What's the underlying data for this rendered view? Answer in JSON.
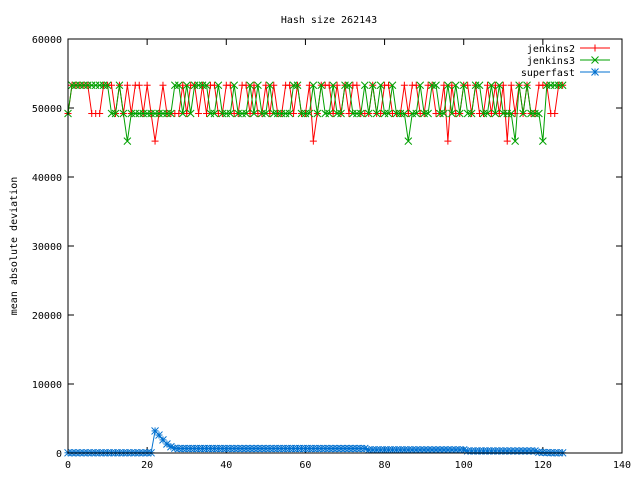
{
  "chart_data": {
    "type": "line",
    "title": "Hash size 262143",
    "xlabel": "",
    "ylabel": "mean absolute deviation",
    "xlim": [
      0,
      140
    ],
    "ylim": [
      0,
      60000
    ],
    "x_ticks": [
      "0",
      "20",
      "40",
      "60",
      "80",
      "100",
      "120",
      "140"
    ],
    "y_ticks": [
      "0",
      "10000",
      "20000",
      "30000",
      "40000",
      "50000",
      "60000"
    ],
    "grid": false,
    "legend_position": "top-right",
    "series": [
      {
        "name": "jenkins2",
        "color": "#ff0000",
        "marker": "plus",
        "x": [
          0,
          1,
          2,
          3,
          4,
          5,
          6,
          7,
          8,
          9,
          10,
          11,
          12,
          13,
          14,
          15,
          16,
          17,
          18,
          19,
          20,
          21,
          22,
          23,
          24,
          25,
          26,
          27,
          28,
          29,
          30,
          31,
          32,
          33,
          34,
          35,
          36,
          37,
          38,
          39,
          40,
          41,
          42,
          43,
          44,
          45,
          46,
          47,
          48,
          49,
          50,
          51,
          52,
          53,
          54,
          55,
          56,
          57,
          58,
          59,
          60,
          61,
          62,
          63,
          64,
          65,
          66,
          67,
          68,
          69,
          70,
          71,
          72,
          73,
          74,
          75,
          76,
          77,
          78,
          79,
          80,
          81,
          82,
          83,
          84,
          85,
          86,
          87,
          88,
          89,
          90,
          91,
          92,
          93,
          94,
          95,
          96,
          97,
          98,
          99,
          100,
          101,
          102,
          103,
          104,
          105,
          106,
          107,
          108,
          109,
          110,
          111,
          112,
          113,
          114,
          115,
          116,
          117,
          118,
          119,
          120,
          121,
          122,
          123,
          124,
          125
        ],
        "values": [
          49200,
          53300,
          53300,
          53300,
          53300,
          53300,
          49200,
          49200,
          49200,
          53300,
          53300,
          53300,
          49200,
          53300,
          49200,
          53300,
          49200,
          53300,
          53300,
          49200,
          53300,
          49200,
          45200,
          49200,
          53300,
          49200,
          49200,
          49200,
          49200,
          53300,
          49200,
          53300,
          53300,
          49200,
          53300,
          49200,
          53300,
          53300,
          49200,
          49200,
          53300,
          53300,
          49200,
          49200,
          53300,
          53300,
          49200,
          53300,
          49200,
          49200,
          53300,
          49200,
          53300,
          49200,
          49200,
          53300,
          53300,
          49200,
          53300,
          49200,
          49200,
          53300,
          45200,
          49200,
          53300,
          53300,
          53300,
          49200,
          53300,
          49200,
          53300,
          49200,
          53300,
          53300,
          49200,
          49200,
          49200,
          53300,
          49200,
          49200,
          53300,
          53300,
          49200,
          49200,
          49200,
          53300,
          49200,
          53300,
          53300,
          49200,
          49200,
          53300,
          53300,
          49200,
          49200,
          53300,
          45200,
          53300,
          49200,
          49200,
          53300,
          53300,
          49200,
          53300,
          49200,
          49200,
          53300,
          49200,
          53300,
          49200,
          53300,
          45200,
          53300,
          49200,
          53300,
          49200,
          53300,
          49200,
          49200,
          53300,
          53300,
          53300,
          49200,
          49200,
          53300,
          53300
        ]
      },
      {
        "name": "jenkins3",
        "color": "#00a000",
        "marker": "cross",
        "x": [
          0,
          1,
          2,
          3,
          4,
          5,
          6,
          7,
          8,
          9,
          10,
          11,
          12,
          13,
          14,
          15,
          16,
          17,
          18,
          19,
          20,
          21,
          22,
          23,
          24,
          25,
          26,
          27,
          28,
          29,
          30,
          31,
          32,
          33,
          34,
          35,
          36,
          37,
          38,
          39,
          40,
          41,
          42,
          43,
          44,
          45,
          46,
          47,
          48,
          49,
          50,
          51,
          52,
          53,
          54,
          55,
          56,
          57,
          58,
          59,
          60,
          61,
          62,
          63,
          64,
          65,
          66,
          67,
          68,
          69,
          70,
          71,
          72,
          73,
          74,
          75,
          76,
          77,
          78,
          79,
          80,
          81,
          82,
          83,
          84,
          85,
          86,
          87,
          88,
          89,
          90,
          91,
          92,
          93,
          94,
          95,
          96,
          97,
          98,
          99,
          100,
          101,
          102,
          103,
          104,
          105,
          106,
          107,
          108,
          109,
          110,
          111,
          112,
          113,
          114,
          115,
          116,
          117,
          118,
          119,
          120,
          121,
          122,
          123,
          124,
          125
        ],
        "values": [
          49200,
          53300,
          53300,
          53300,
          53300,
          53300,
          53300,
          53300,
          53300,
          53300,
          53300,
          49200,
          49200,
          53300,
          49200,
          45200,
          49200,
          49200,
          49200,
          49200,
          49200,
          49200,
          49200,
          49200,
          49200,
          49200,
          49200,
          53300,
          53300,
          49200,
          53300,
          49200,
          53300,
          53300,
          53300,
          53300,
          49200,
          49200,
          53300,
          49200,
          49200,
          49200,
          53300,
          49200,
          49200,
          49200,
          53300,
          49200,
          53300,
          49200,
          49200,
          53300,
          49200,
          49200,
          49200,
          49200,
          49200,
          53300,
          53300,
          49200,
          49200,
          49200,
          53300,
          49200,
          53300,
          49200,
          49200,
          53300,
          49200,
          49200,
          53300,
          53300,
          49200,
          49200,
          49200,
          53300,
          49200,
          53300,
          49200,
          53300,
          49200,
          49200,
          53300,
          49200,
          49200,
          49200,
          45200,
          49200,
          49200,
          53300,
          49200,
          49200,
          53300,
          53300,
          49200,
          49200,
          53300,
          49200,
          53300,
          49200,
          53300,
          49200,
          49200,
          53300,
          53300,
          49200,
          49200,
          53300,
          49200,
          53300,
          49200,
          49200,
          49200,
          45200,
          53300,
          49200,
          53300,
          49200,
          49200,
          49200,
          45200,
          53300,
          53300,
          53300,
          53300,
          53300
        ]
      },
      {
        "name": "superfast",
        "color": "#0070d0",
        "marker": "star",
        "x": [
          0,
          1,
          2,
          3,
          4,
          5,
          6,
          7,
          8,
          9,
          10,
          11,
          12,
          13,
          14,
          15,
          16,
          17,
          18,
          19,
          20,
          21,
          22,
          23,
          24,
          25,
          26,
          27,
          28,
          29,
          30,
          31,
          32,
          33,
          34,
          35,
          36,
          37,
          38,
          39,
          40,
          41,
          42,
          43,
          44,
          45,
          46,
          47,
          48,
          49,
          50,
          51,
          52,
          53,
          54,
          55,
          56,
          57,
          58,
          59,
          60,
          61,
          62,
          63,
          64,
          65,
          66,
          67,
          68,
          69,
          70,
          71,
          72,
          73,
          74,
          75,
          76,
          77,
          78,
          79,
          80,
          81,
          82,
          83,
          84,
          85,
          86,
          87,
          88,
          89,
          90,
          91,
          92,
          93,
          94,
          95,
          96,
          97,
          98,
          99,
          100,
          101,
          102,
          103,
          104,
          105,
          106,
          107,
          108,
          109,
          110,
          111,
          112,
          113,
          114,
          115,
          116,
          117,
          118,
          119,
          120,
          121,
          122,
          123,
          124,
          125
        ],
        "values": [
          30,
          30,
          30,
          30,
          30,
          30,
          30,
          30,
          30,
          30,
          30,
          30,
          30,
          30,
          30,
          30,
          30,
          30,
          30,
          30,
          30,
          30,
          3200,
          2600,
          1900,
          1300,
          900,
          700,
          650,
          650,
          650,
          650,
          650,
          650,
          650,
          650,
          650,
          650,
          650,
          650,
          650,
          650,
          650,
          650,
          650,
          650,
          650,
          650,
          650,
          650,
          650,
          650,
          650,
          650,
          650,
          650,
          650,
          650,
          650,
          650,
          650,
          650,
          650,
          650,
          650,
          650,
          650,
          650,
          650,
          650,
          650,
          650,
          650,
          650,
          650,
          650,
          450,
          450,
          450,
          450,
          450,
          450,
          450,
          450,
          450,
          450,
          450,
          450,
          450,
          450,
          450,
          450,
          450,
          450,
          450,
          450,
          450,
          450,
          450,
          450,
          450,
          300,
          300,
          300,
          300,
          300,
          300,
          300,
          300,
          300,
          300,
          300,
          300,
          300,
          300,
          300,
          300,
          300,
          300,
          120,
          80,
          60,
          40,
          30,
          30,
          30
        ]
      }
    ]
  }
}
